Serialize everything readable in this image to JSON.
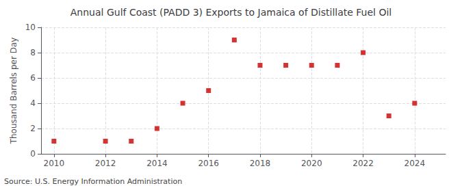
{
  "chart_data": {
    "type": "scatter",
    "title": "Annual Gulf Coast (PADD 3) Exports to Jamaica of Distillate Fuel Oil",
    "ylabel": "Thousand Barrels per Day",
    "source": "Source: U.S. Energy Information Administration",
    "x": [
      2010,
      2012,
      2013,
      2014,
      2015,
      2016,
      2017,
      2018,
      2019,
      2020,
      2021,
      2022,
      2023,
      2024
    ],
    "values": [
      1,
      1,
      1,
      2,
      4,
      5,
      9,
      7,
      7,
      7,
      7,
      8,
      3,
      4
    ],
    "color": "#cc0000",
    "marker": "square",
    "xlim": [
      2009.5,
      2025.2
    ],
    "ylim": [
      0,
      10
    ],
    "xticks": [
      2010,
      2012,
      2014,
      2016,
      2018,
      2020,
      2022,
      2024
    ],
    "yticks": [
      0,
      2,
      4,
      6,
      8,
      10
    ],
    "grid": true
  }
}
